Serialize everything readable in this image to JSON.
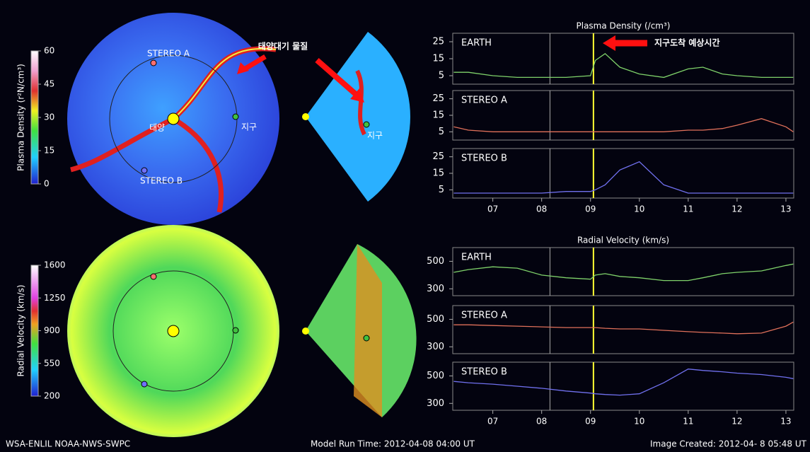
{
  "chart_data": [
    {
      "type": "line",
      "title": "Plasma Density (/cm³)",
      "x": [
        6.2,
        6.5,
        7,
        7.5,
        8,
        8.5,
        9,
        9.1,
        9.3,
        9.6,
        10,
        10.5,
        11,
        11.3,
        11.7,
        12,
        12.5,
        13,
        13.15
      ],
      "xlim": [
        6.18,
        13.16
      ],
      "ylim": [
        0,
        30
      ],
      "yticks": [
        5,
        15,
        25
      ],
      "series": [
        {
          "name": "EARTH",
          "color": "#7fd26a",
          "values": [
            7,
            7,
            5,
            4,
            4,
            4,
            5,
            14,
            18,
            10,
            6,
            4,
            9,
            10,
            6,
            5,
            4,
            4,
            4
          ]
        }
      ],
      "vlines": [
        {
          "value": 8.17,
          "color": "#aaaaaa"
        },
        {
          "value": 9.06,
          "color": "#ffff33"
        }
      ]
    },
    {
      "type": "line",
      "x": [
        6.2,
        6.5,
        7,
        7.5,
        8,
        8.5,
        9,
        9.1,
        9.3,
        9.6,
        10,
        10.5,
        11,
        11.3,
        11.7,
        12,
        12.5,
        13,
        13.15
      ],
      "xlim": [
        6.18,
        13.16
      ],
      "ylim": [
        0,
        30
      ],
      "yticks": [
        5,
        15,
        25
      ],
      "series": [
        {
          "name": "STEREO A",
          "color": "#e0705a",
          "values": [
            8,
            6,
            5,
            5,
            5,
            5,
            5,
            5,
            5,
            5,
            5,
            5,
            6,
            6,
            7,
            9,
            13,
            8,
            5
          ]
        }
      ],
      "vlines": [
        {
          "value": 8.17,
          "color": "#aaaaaa"
        },
        {
          "value": 9.06,
          "color": "#ffff33"
        }
      ]
    },
    {
      "type": "line",
      "x": [
        6.2,
        6.5,
        7,
        7.5,
        8,
        8.5,
        9,
        9.1,
        9.3,
        9.6,
        10,
        10.5,
        11,
        11.3,
        11.7,
        12,
        12.5,
        13,
        13.15
      ],
      "xlim": [
        6.18,
        13.16
      ],
      "ylim": [
        0,
        30
      ],
      "yticks": [
        5,
        15,
        25
      ],
      "xticks": [
        {
          "value": 7,
          "label": "07"
        },
        {
          "value": 8,
          "label": "08"
        },
        {
          "value": 9,
          "label": "09"
        },
        10,
        11,
        12,
        13
      ],
      "series": [
        {
          "name": "STEREO B",
          "color": "#7070ee",
          "values": [
            3,
            3,
            3,
            3,
            3,
            4,
            4,
            5,
            8,
            17,
            22,
            8,
            3,
            3,
            3,
            3,
            3,
            3,
            3
          ]
        }
      ],
      "vlines": [
        {
          "value": 8.17,
          "color": "#aaaaaa"
        },
        {
          "value": 9.06,
          "color": "#ffff33"
        }
      ]
    },
    {
      "type": "line",
      "title": "Radial Velocity (km/s)",
      "x": [
        6.2,
        6.5,
        7,
        7.5,
        8,
        8.5,
        9,
        9.1,
        9.3,
        9.6,
        10,
        10.5,
        11,
        11.3,
        11.7,
        12,
        12.5,
        13,
        13.15
      ],
      "xlim": [
        6.18,
        13.16
      ],
      "ylim": [
        250,
        600
      ],
      "yticks": [
        300,
        500
      ],
      "series": [
        {
          "name": "EARTH",
          "color": "#7fd26a",
          "values": [
            420,
            440,
            460,
            450,
            400,
            380,
            370,
            400,
            410,
            390,
            380,
            360,
            360,
            380,
            410,
            420,
            430,
            470,
            480
          ]
        }
      ],
      "vlines": [
        {
          "value": 8.17,
          "color": "#aaaaaa"
        },
        {
          "value": 9.06,
          "color": "#ffff33"
        }
      ]
    },
    {
      "type": "line",
      "x": [
        6.2,
        6.5,
        7,
        7.5,
        8,
        8.5,
        9,
        9.1,
        9.3,
        9.6,
        10,
        10.5,
        11,
        11.3,
        11.7,
        12,
        12.5,
        13,
        13.15
      ],
      "xlim": [
        6.18,
        13.16
      ],
      "ylim": [
        250,
        600
      ],
      "yticks": [
        300,
        500
      ],
      "series": [
        {
          "name": "STEREO A",
          "color": "#e0705a",
          "values": [
            460,
            460,
            455,
            450,
            445,
            440,
            440,
            440,
            435,
            430,
            430,
            420,
            410,
            405,
            400,
            395,
            400,
            450,
            480
          ]
        }
      ],
      "vlines": [
        {
          "value": 8.17,
          "color": "#aaaaaa"
        },
        {
          "value": 9.06,
          "color": "#ffff33"
        }
      ]
    },
    {
      "type": "line",
      "x": [
        6.2,
        6.5,
        7,
        7.5,
        8,
        8.5,
        9,
        9.1,
        9.3,
        9.6,
        10,
        10.5,
        11,
        11.3,
        11.7,
        12,
        12.5,
        13,
        13.15
      ],
      "xlim": [
        6.18,
        13.16
      ],
      "ylim": [
        250,
        600
      ],
      "yticks": [
        300,
        500
      ],
      "xticks": [
        {
          "value": 7,
          "label": "07"
        },
        {
          "value": 8,
          "label": "08"
        },
        {
          "value": 9,
          "label": "09"
        },
        10,
        11,
        12,
        13
      ],
      "series": [
        {
          "name": "STEREO B",
          "color": "#7070ee",
          "values": [
            460,
            450,
            440,
            425,
            410,
            390,
            375,
            370,
            365,
            360,
            370,
            450,
            550,
            540,
            530,
            520,
            510,
            490,
            480
          ]
        }
      ],
      "vlines": [
        {
          "value": 8.17,
          "color": "#aaaaaa"
        },
        {
          "value": 9.06,
          "color": "#ffff33"
        }
      ]
    }
  ],
  "colorbars": [
    {
      "label": "Plasma Density (r²N/cm³)",
      "ticks": [
        60,
        45,
        30,
        15,
        0
      ]
    },
    {
      "label": "Radial Velocity (km/s)",
      "ticks": [
        1600,
        1250,
        900,
        550,
        200
      ]
    }
  ],
  "annotations": {
    "stereo_a": "STEREO A",
    "stereo_b": "STEREO B",
    "sun": "태양",
    "earth": "지구",
    "earth_wedge": "지구",
    "solar_material": "태양대기 물질",
    "arrival": "지구도착 예상시간"
  },
  "footer": {
    "left": "WSA-ENLIL NOAA-NWS-SWPC",
    "center": "Model Run Time: 2012-04-08 04:00 UT",
    "right": "Image Created: 2012-04- 8 05:48 UT"
  }
}
